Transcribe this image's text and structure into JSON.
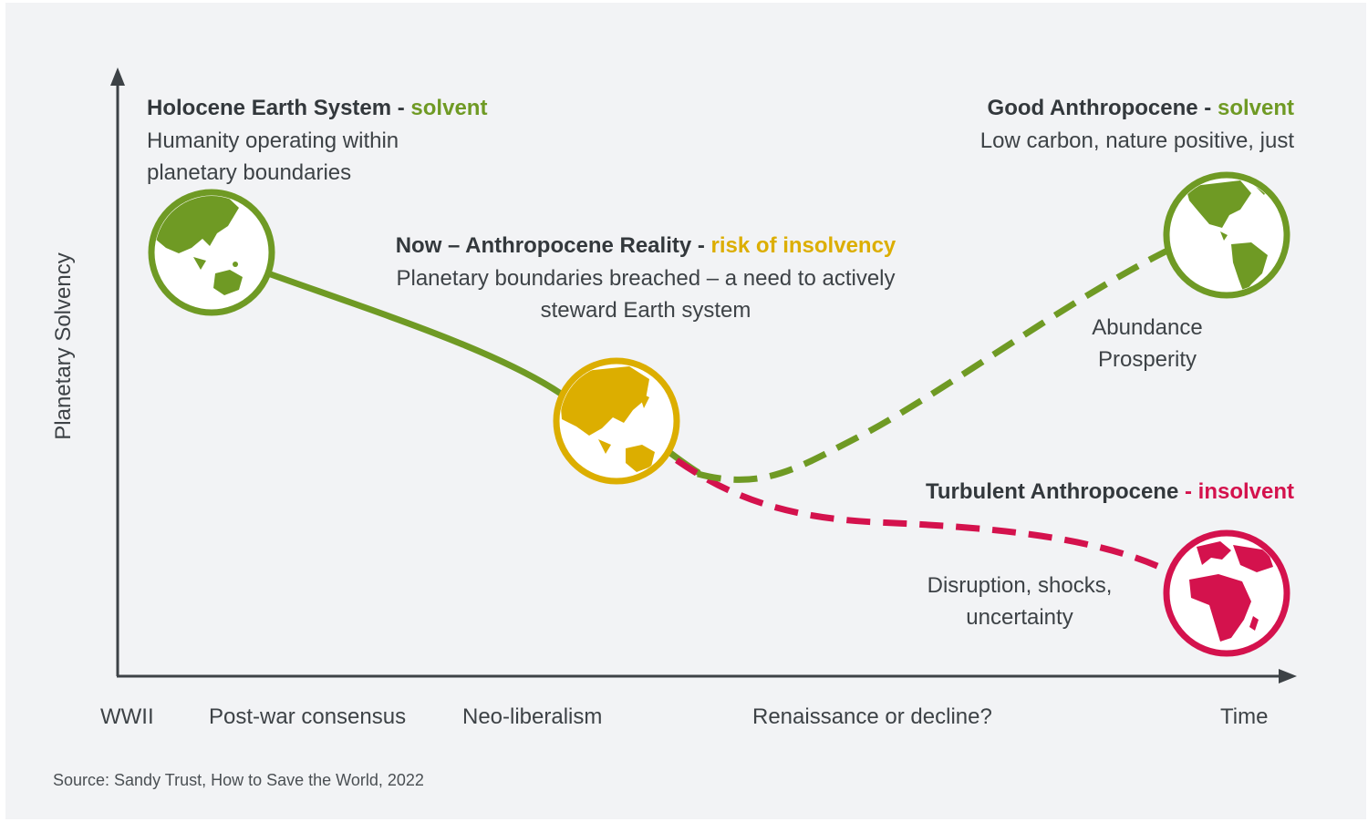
{
  "axes": {
    "y_label": "Planetary Solvency",
    "x_ticks": [
      "WWII",
      "Post-war consensus",
      "Neo-liberalism",
      "Renaissance or decline?",
      "Time"
    ]
  },
  "colors": {
    "solvent": "#6f9a24",
    "risk": "#dcae00",
    "insolvent": "#d4124d",
    "axis": "#3d4246",
    "background": "#f2f3f5"
  },
  "states": {
    "holocene": {
      "title": "Holocene Earth System -",
      "status": "solvent",
      "desc1": "Humanity operating within",
      "desc2": "planetary boundaries",
      "icon": "globe-asia-australia-icon"
    },
    "now": {
      "title": "Now – Anthropocene Reality -",
      "status": "risk of insolvency",
      "desc1": "Planetary boundaries breached – a need to actively",
      "desc2": "steward Earth system",
      "icon": "globe-asia-australia-icon"
    },
    "good": {
      "title": "Good Anthropocene -",
      "status": "solvent",
      "desc1": "Low carbon, nature positive, just",
      "note1": "Abundance",
      "note2": "Prosperity",
      "icon": "globe-americas-icon"
    },
    "turbulent": {
      "title": "Turbulent Anthropocene",
      "status": "- insolvent",
      "note1": "Disruption, shocks,",
      "note2": "uncertainty",
      "icon": "globe-africa-europe-icon"
    }
  },
  "source": "Source: Sandy Trust, How to Save the World, 2022"
}
